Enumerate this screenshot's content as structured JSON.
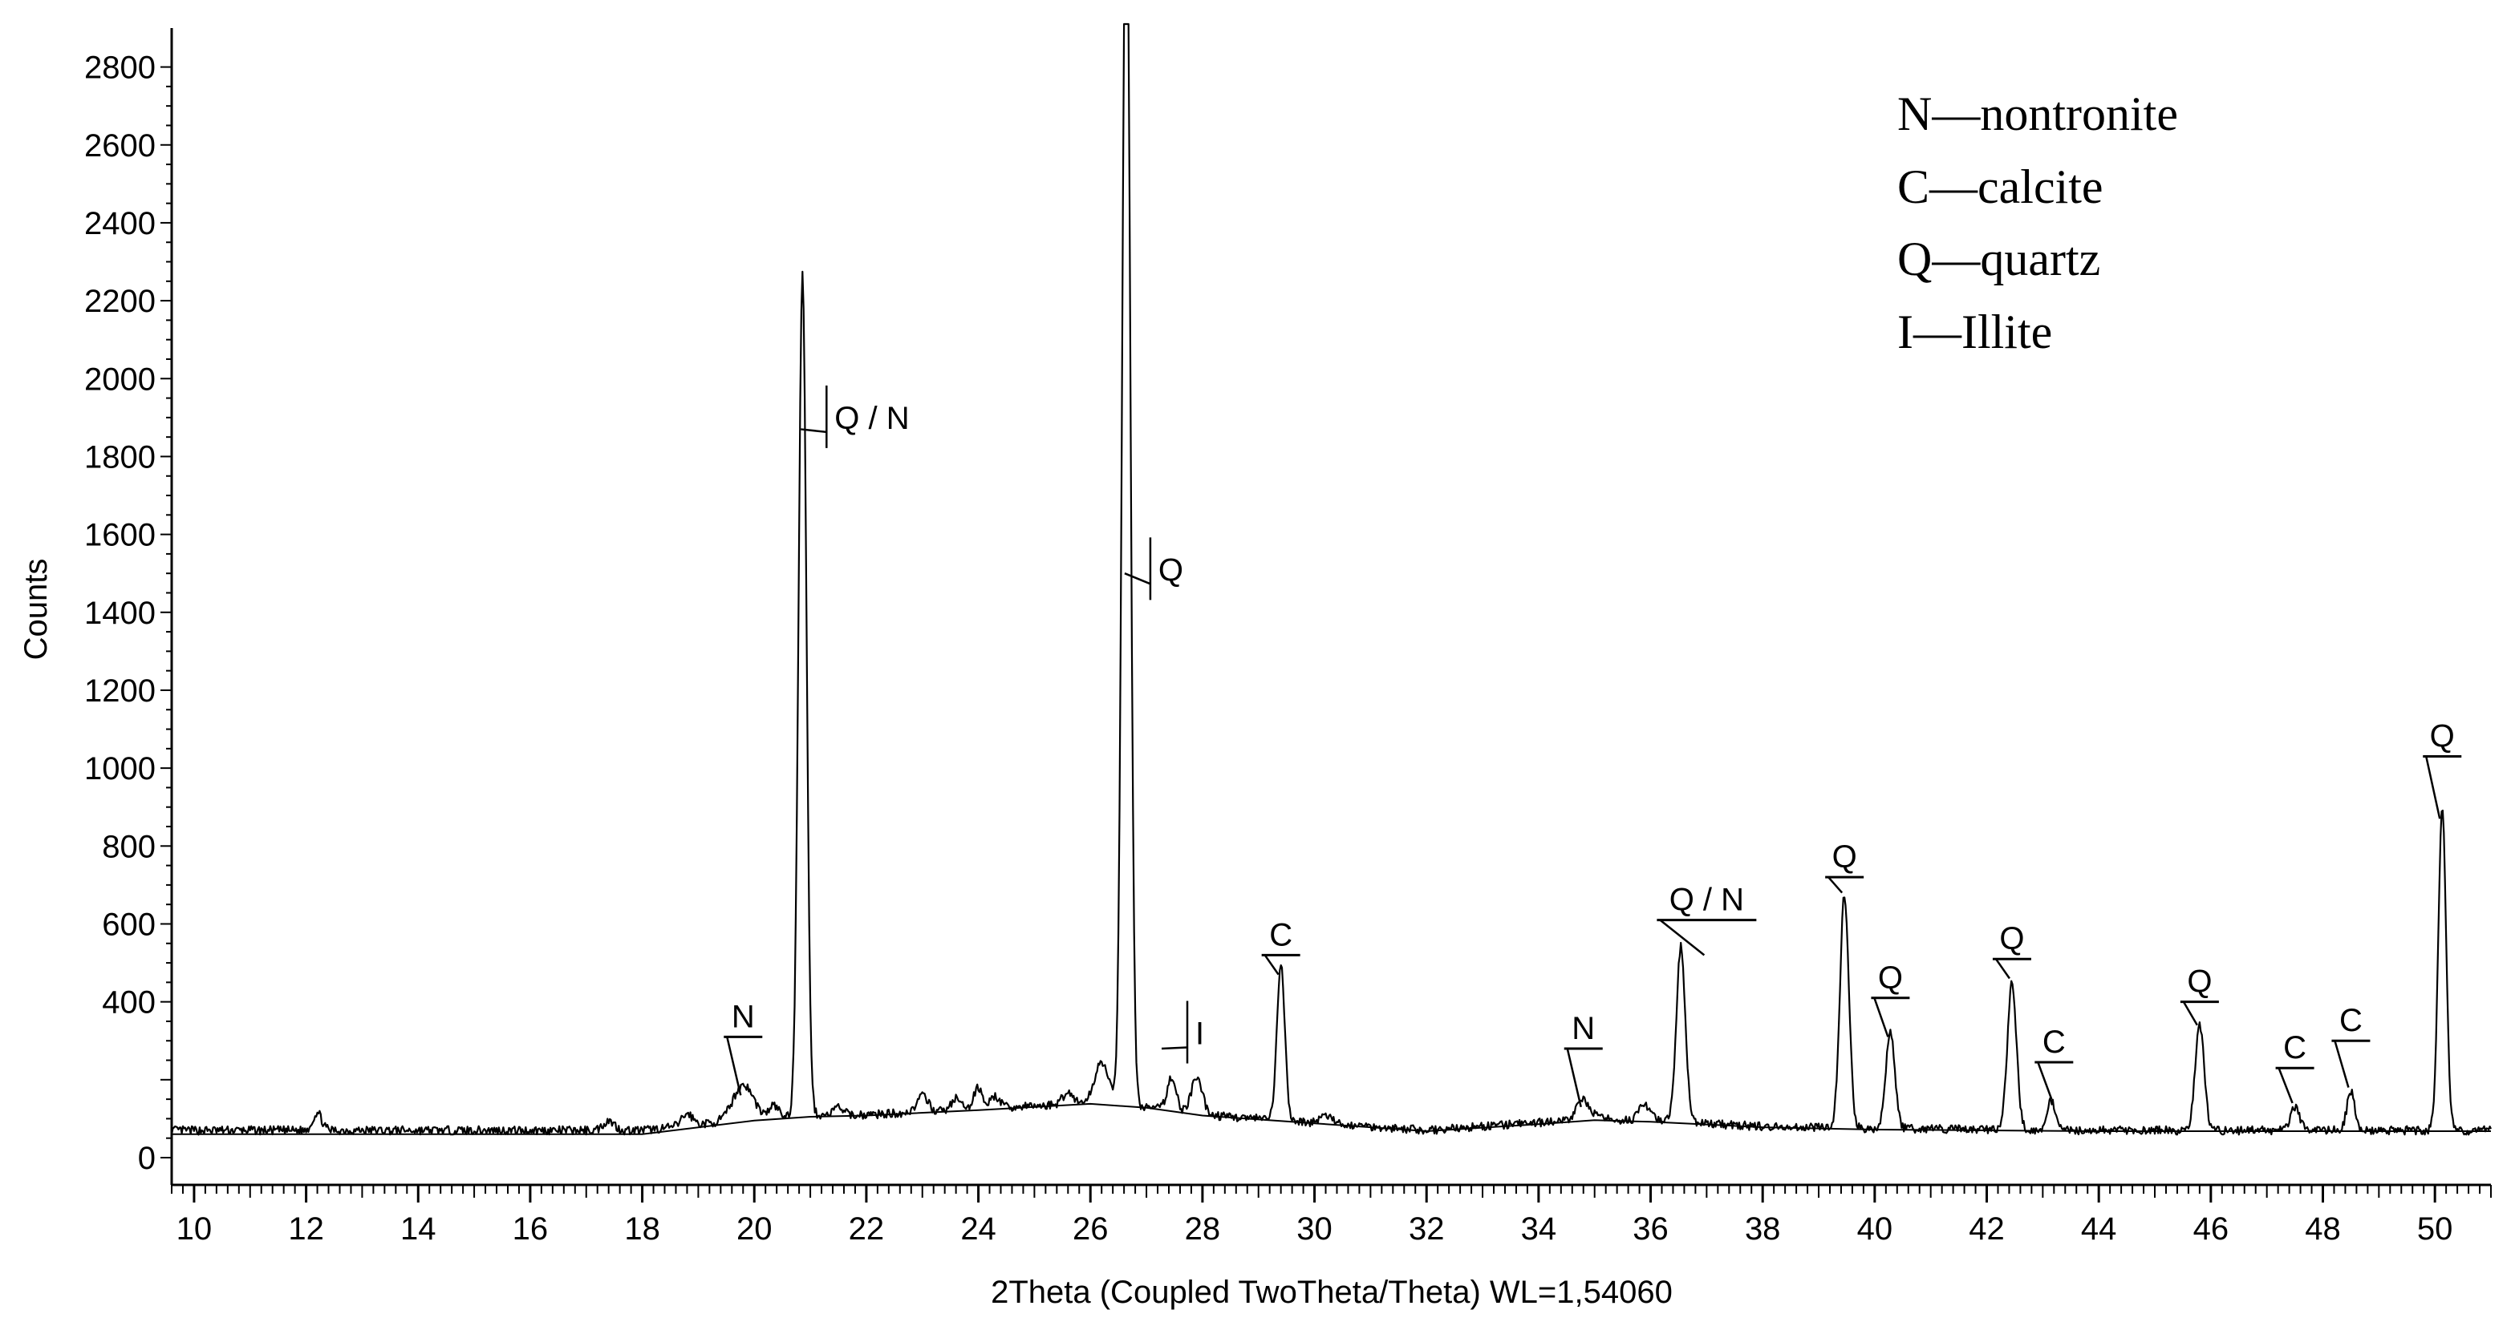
{
  "chart_data": {
    "type": "line",
    "title": "",
    "xlabel": "2Theta (Coupled TwoTheta/Theta) WL=1,54060",
    "ylabel": "Counts",
    "xlim": [
      9.6,
      51
    ],
    "ylim": [
      -70,
      2900
    ],
    "x_ticks": [
      10,
      12,
      14,
      16,
      18,
      20,
      22,
      24,
      26,
      28,
      30,
      32,
      34,
      36,
      38,
      40,
      42,
      44,
      46,
      48,
      50
    ],
    "y_ticks": [
      0,
      400,
      600,
      800,
      1000,
      1200,
      1400,
      1600,
      1800,
      2000,
      2200,
      2400,
      2600,
      2800
    ],
    "grid": false,
    "colors": {
      "line": "#000000",
      "background": "#ffffff"
    },
    "legend": {
      "placement": "top-right",
      "entries": [
        "N—nontronite",
        "C—calcite",
        "Q—quartz",
        "I—Illite"
      ]
    },
    "series": [
      {
        "type": "spectrum",
        "base": [
          [
            9.6,
            70
          ],
          [
            12,
            70
          ],
          [
            16,
            70
          ],
          [
            18,
            70
          ],
          [
            20,
            100
          ],
          [
            21,
            110
          ],
          [
            22,
            110
          ],
          [
            24,
            125
          ],
          [
            26,
            140
          ],
          [
            27,
            130
          ],
          [
            28,
            110
          ],
          [
            30,
            90
          ],
          [
            32,
            70
          ],
          [
            34,
            90
          ],
          [
            35,
            100
          ],
          [
            36,
            95
          ],
          [
            38,
            80
          ],
          [
            40,
            75
          ],
          [
            44,
            70
          ],
          [
            51,
            70
          ]
        ],
        "peaks": [
          [
            12.2,
            45,
            0.08
          ],
          [
            17.4,
            25,
            0.1
          ],
          [
            18.8,
            30,
            0.1
          ],
          [
            19.8,
            90,
            0.18
          ],
          [
            20.35,
            30,
            0.08
          ],
          [
            20.86,
            2160,
            0.07
          ],
          [
            21.5,
            20,
            0.08
          ],
          [
            23.0,
            40,
            0.1
          ],
          [
            23.6,
            30,
            0.08
          ],
          [
            24.0,
            55,
            0.08
          ],
          [
            24.3,
            30,
            0.08
          ],
          [
            25.6,
            30,
            0.1
          ],
          [
            26.2,
            110,
            0.12
          ],
          [
            26.64,
            3300,
            0.07
          ],
          [
            27.45,
            85,
            0.08
          ],
          [
            27.9,
            90,
            0.1
          ],
          [
            29.4,
            400,
            0.07
          ],
          [
            30.2,
            20,
            0.1
          ],
          [
            34.8,
            50,
            0.12
          ],
          [
            35.9,
            40,
            0.1
          ],
          [
            36.54,
            450,
            0.08
          ],
          [
            39.46,
            600,
            0.08
          ],
          [
            40.28,
            250,
            0.08
          ],
          [
            42.45,
            380,
            0.08
          ],
          [
            43.15,
            75,
            0.07
          ],
          [
            45.8,
            270,
            0.08
          ],
          [
            47.5,
            60,
            0.08
          ],
          [
            48.5,
            100,
            0.07
          ],
          [
            50.13,
            830,
            0.07
          ]
        ]
      },
      {
        "type": "background",
        "points": [
          [
            9.6,
            60
          ],
          [
            12,
            60
          ],
          [
            16,
            60
          ],
          [
            18,
            60
          ],
          [
            20,
            95
          ],
          [
            21,
            105
          ],
          [
            22,
            108
          ],
          [
            24,
            122
          ],
          [
            26,
            138
          ],
          [
            27,
            128
          ],
          [
            28,
            108
          ],
          [
            30,
            88
          ],
          [
            32,
            68
          ],
          [
            34,
            86
          ],
          [
            35,
            96
          ],
          [
            36,
            92
          ],
          [
            38,
            78
          ],
          [
            40,
            72
          ],
          [
            44,
            68
          ],
          [
            51,
            68
          ]
        ]
      }
    ],
    "annotations": [
      {
        "text": "Q / N",
        "x": 20.86,
        "y": 1900,
        "line_y": 1870,
        "style": "vertical"
      },
      {
        "text": "Q",
        "x": 26.64,
        "y": 1510,
        "line_y": 1500,
        "style": "vertical"
      },
      {
        "text": "I",
        "x": 27.3,
        "y": 320,
        "line_y": 280,
        "style": "vertical"
      },
      {
        "text": "N",
        "x": 19.8,
        "y": 310,
        "line_y": 160,
        "style": "bar"
      },
      {
        "text": "C",
        "x": 29.4,
        "y": 520,
        "line_y": 470,
        "style": "bar"
      },
      {
        "text": "N",
        "x": 34.8,
        "y": 280,
        "line_y": 130,
        "style": "bar"
      },
      {
        "text": "Q / N",
        "x": 37.0,
        "y": 610,
        "line_y": 520,
        "style": "bar"
      },
      {
        "text": "Q",
        "x": 39.46,
        "y": 720,
        "line_y": 680,
        "style": "bar"
      },
      {
        "text": "Q",
        "x": 40.28,
        "y": 410,
        "line_y": 310,
        "style": "bar"
      },
      {
        "text": "Q",
        "x": 42.45,
        "y": 510,
        "line_y": 460,
        "style": "bar"
      },
      {
        "text": "C",
        "x": 43.2,
        "y": 245,
        "line_y": 150,
        "style": "bar"
      },
      {
        "text": "Q",
        "x": 45.8,
        "y": 400,
        "line_y": 340,
        "style": "bar"
      },
      {
        "text": "C",
        "x": 47.5,
        "y": 230,
        "line_y": 140,
        "style": "bar"
      },
      {
        "text": "C",
        "x": 48.5,
        "y": 300,
        "line_y": 180,
        "style": "bar"
      },
      {
        "text": "Q",
        "x": 50.13,
        "y": 1030,
        "line_y": 870,
        "style": "bar"
      }
    ]
  }
}
